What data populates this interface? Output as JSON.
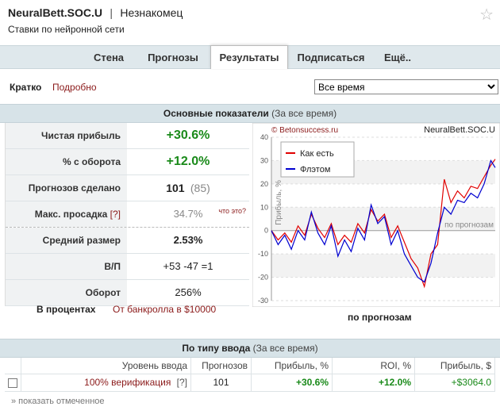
{
  "header": {
    "name": "NeuralBett.SOC.U",
    "separator": "|",
    "user": "Незнакомец",
    "subtitle": "Ставки по нейронной сети"
  },
  "nav": {
    "tabs": [
      {
        "label": "Стена",
        "active": false
      },
      {
        "label": "Прогнозы",
        "active": false
      },
      {
        "label": "Результаты",
        "active": true
      },
      {
        "label": "Подписаться",
        "active": false
      },
      {
        "label": "Ещё..",
        "active": false
      }
    ]
  },
  "modes": {
    "brief": "Кратко",
    "detail": "Подробно"
  },
  "period_select": {
    "value": "Все время",
    "options": [
      "Все время"
    ]
  },
  "main_panel": {
    "title": "Основные показатели",
    "subtitle": "(За все время)"
  },
  "stats": {
    "net_profit": {
      "label": "Чистая прибыль",
      "value": "+30.6%"
    },
    "turnover_pct": {
      "label": "% с оборота",
      "value": "+12.0%"
    },
    "made": {
      "label": "Прогнозов сделано",
      "value": "101",
      "extra": "(85)"
    },
    "drawdown": {
      "label": "Макс. просадка",
      "q": "[?]",
      "value": "34.7%",
      "what": "что это?"
    },
    "avg_size": {
      "label": "Средний размер",
      "value": "2.53%"
    },
    "wl": {
      "label": "В/П",
      "value": "+53 -47 =1"
    },
    "turnover": {
      "label": "Оборот",
      "value": "256%"
    }
  },
  "percent_line": {
    "label": "В процентах",
    "bankroll": "От банкролла в $10000"
  },
  "chart_data": {
    "type": "line",
    "title": "NeuralBett.SOC.U",
    "watermark": "© Betonsuccess.ru",
    "xlabel": "по прогнозам",
    "xlabel_inner": "по прогнозам",
    "ylabel": "Прибыль, %",
    "ylim": [
      -30,
      40
    ],
    "yticks": [
      -30,
      -20,
      -10,
      0,
      10,
      20,
      30,
      40
    ],
    "legend_position": "top-left",
    "grid": true,
    "series": [
      {
        "name": "Как есть",
        "color": "#e00000",
        "x": [
          0,
          3,
          6,
          9,
          12,
          15,
          18,
          21,
          24,
          27,
          30,
          33,
          36,
          39,
          42,
          45,
          48,
          51,
          54,
          57,
          60,
          63,
          66,
          69,
          72,
          75,
          78,
          81,
          84,
          87,
          90,
          93,
          96,
          99,
          101
        ],
        "values": [
          0,
          -4,
          -1,
          -5,
          2,
          -2,
          7,
          1,
          -3,
          3,
          -6,
          -2,
          -5,
          3,
          -1,
          9,
          4,
          7,
          -3,
          2,
          -5,
          -12,
          -16,
          -24,
          -10,
          -6,
          22,
          12,
          17,
          14,
          19,
          18,
          23,
          28,
          30.6
        ]
      },
      {
        "name": "Флэтом",
        "color": "#0000d0",
        "x": [
          0,
          3,
          6,
          9,
          12,
          15,
          18,
          21,
          24,
          27,
          30,
          33,
          36,
          39,
          42,
          45,
          48,
          51,
          54,
          57,
          60,
          63,
          66,
          69,
          72,
          75,
          78,
          81,
          84,
          87,
          90,
          93,
          96,
          99,
          101
        ],
        "values": [
          0,
          -6,
          -2,
          -8,
          0,
          -4,
          8,
          -1,
          -6,
          2,
          -11,
          -4,
          -9,
          1,
          -4,
          11,
          3,
          6,
          -6,
          0,
          -10,
          -15,
          -20,
          -22,
          -14,
          -1,
          10,
          7,
          13,
          12,
          16,
          14,
          20,
          30,
          27
        ]
      }
    ]
  },
  "type_panel": {
    "title": "По типу ввода",
    "subtitle": "(За все время)",
    "headers": [
      "Уровень ввода",
      "Прогнозов",
      "Прибыль, %",
      "ROI, %",
      "Прибыль, $"
    ],
    "rows": [
      {
        "level": "100% верификация",
        "q": "[?]",
        "count": "101",
        "profit_pct": "+30.6%",
        "roi": "+12.0%",
        "profit_usd": "+$3064.0"
      }
    ],
    "show_selected": "» показать отмеченное"
  }
}
